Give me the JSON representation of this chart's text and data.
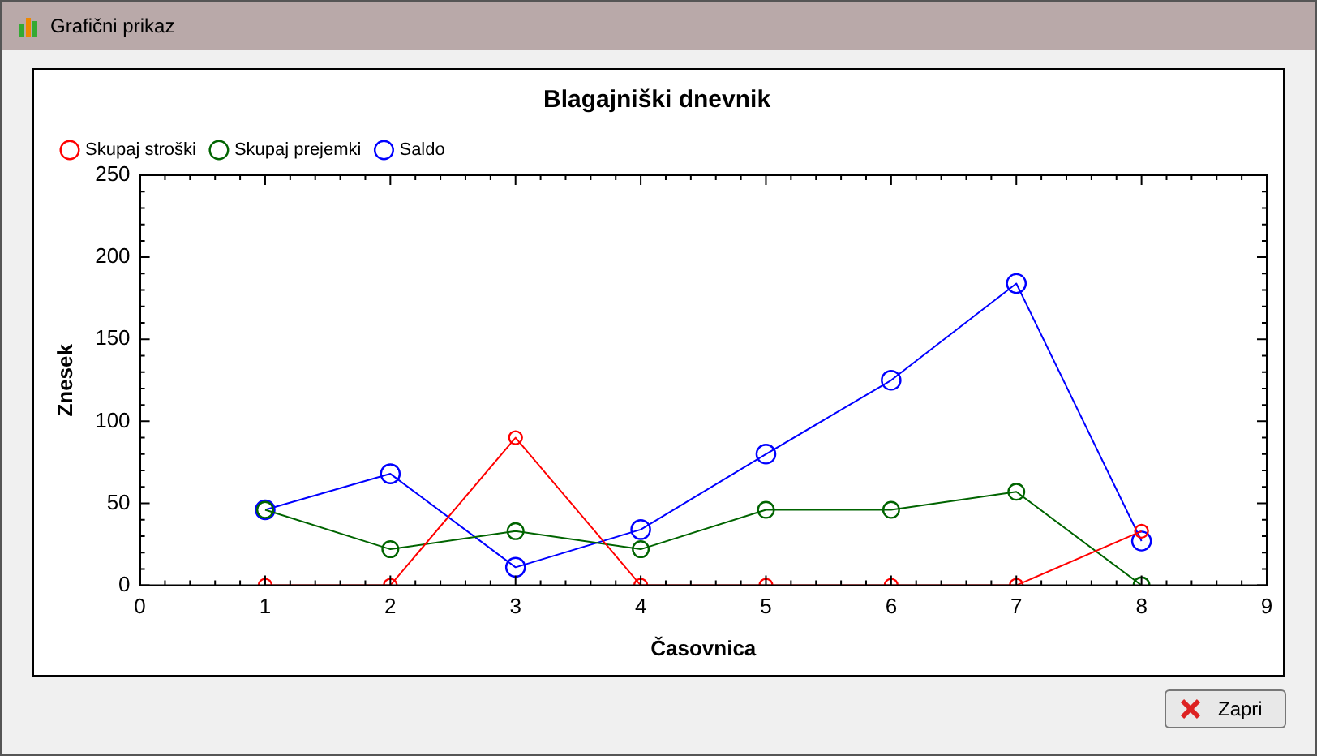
{
  "chart_data": {
    "type": "line",
    "title": "Blagajniški dnevnik",
    "xlabel": "Časovnica",
    "ylabel": "Znesek",
    "annotations": [
      "Grafični prikaz",
      "Zapri"
    ],
    "x": [
      1,
      2,
      3,
      4,
      5,
      6,
      7,
      8
    ],
    "series": [
      {
        "name": "Skupaj stroški",
        "color": "#ff0000",
        "values": [
          0,
          0,
          90,
          0,
          0,
          0,
          0,
          33
        ]
      },
      {
        "name": "Skupaj prejemki",
        "color": "#006400",
        "values": [
          46,
          22,
          33,
          22,
          46,
          46,
          57,
          0
        ]
      },
      {
        "name": "Saldo",
        "color": "#0000ff",
        "values": [
          46,
          68,
          11,
          34,
          80,
          125,
          184,
          27
        ]
      }
    ],
    "xlim": [
      0,
      9
    ],
    "xticks": [
      0,
      1,
      2,
      3,
      4,
      5,
      6,
      7,
      8,
      9
    ],
    "ylim": [
      0,
      250
    ],
    "yticks": [
      0,
      50,
      100,
      150,
      200,
      250
    ],
    "grid": false,
    "legend": "top",
    "marker": "circle",
    "line_style": "solid"
  }
}
